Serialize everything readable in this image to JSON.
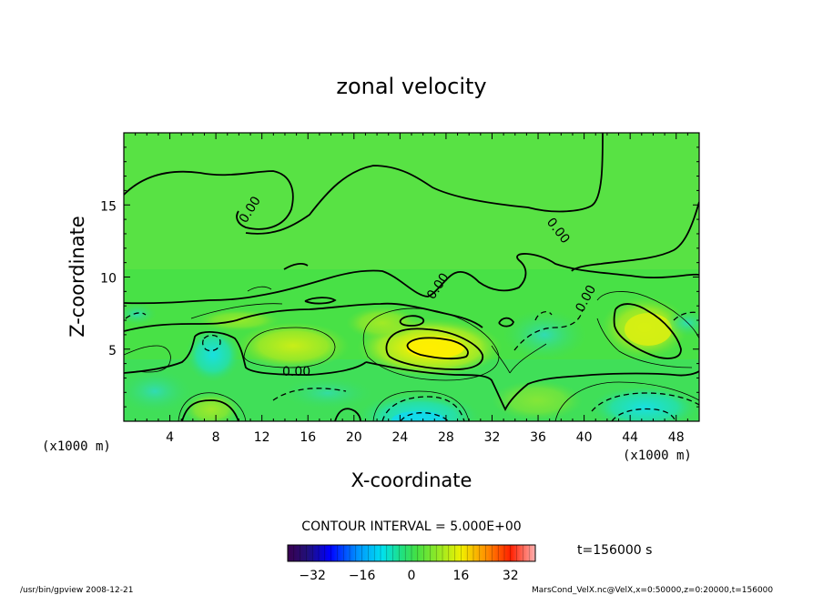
{
  "chart_data": {
    "type": "heatmap",
    "title": "zonal velocity",
    "xlabel": "X-coordinate",
    "ylabel": "Z-coordinate",
    "x_unit_left": "(x1000 m)",
    "x_unit_right": "(x1000 m)",
    "xlim": [
      0,
      50
    ],
    "ylim": [
      0,
      20
    ],
    "x_ticks": [
      "4",
      "8",
      "12",
      "16",
      "20",
      "24",
      "28",
      "32",
      "36",
      "40",
      "44",
      "48"
    ],
    "x_tick_values": [
      4,
      8,
      12,
      16,
      20,
      24,
      28,
      32,
      36,
      40,
      44,
      48
    ],
    "y_ticks": [
      "5",
      "10",
      "15"
    ],
    "y_tick_values": [
      5,
      10,
      15
    ],
    "contour_interval": "CONTOUR INTERVAL = 5.000E+00",
    "contour_labels": [
      "0.00",
      "0.00",
      "0.00",
      "0.00",
      "0.00"
    ],
    "colorbar": {
      "ticks": [
        "−32",
        "−16",
        "0",
        "16",
        "32"
      ],
      "tick_values": [
        -32,
        -16,
        0,
        16,
        32
      ],
      "range": [
        -40,
        40
      ]
    },
    "features": [
      {
        "kind": "max",
        "x": 28,
        "z": 5.0,
        "value": 20
      },
      {
        "kind": "max",
        "x": 44,
        "z": 6.5,
        "value": 15
      },
      {
        "kind": "max",
        "x": 15,
        "z": 5.2,
        "value": 10
      },
      {
        "kind": "min",
        "x": 26,
        "z": 0.3,
        "value": -12
      },
      {
        "kind": "min",
        "x": 8,
        "z": 5.0,
        "value": -8
      },
      {
        "kind": "min",
        "x": 44,
        "z": 0.8,
        "value": -10
      },
      {
        "kind": "min",
        "x": 36,
        "z": 5.5,
        "value": -8
      }
    ],
    "time_label": "t=156000 s"
  },
  "footer": {
    "left": "/usr/bin/gpview   2008-12-21",
    "right": "MarsCond_VelX.nc@VelX,x=0:50000,z=0:20000,t=156000"
  },
  "colors": {
    "background_field": "#44e044",
    "frame": "#000000"
  }
}
